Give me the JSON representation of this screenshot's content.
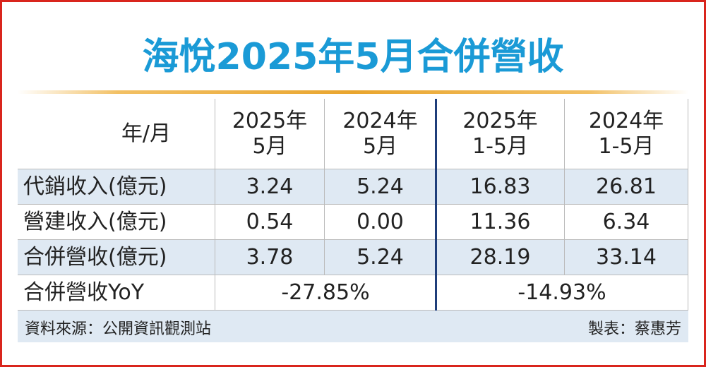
{
  "title": "海悅2025年5月合併營收",
  "table": {
    "corner": "年/月",
    "columns": [
      [
        "2025年",
        "5月"
      ],
      [
        "2024年",
        "5月"
      ],
      [
        "2025年",
        "1-5月"
      ],
      [
        "2024年",
        "1-5月"
      ]
    ],
    "rows": [
      [
        "代銷收入(億元)",
        "3.24",
        "5.24",
        "16.83",
        "26.81"
      ],
      [
        "營建收入(億元)",
        "0.54",
        "0.00",
        "11.36",
        "6.34"
      ],
      [
        "合併營收(億元)",
        "3.78",
        "5.24",
        "28.19",
        "33.14"
      ]
    ],
    "yoy": [
      "合併營收YoY",
      "-27.85%",
      "-14.93%"
    ]
  },
  "footer": {
    "source": "資料來源：公開資訊觀測站",
    "author": "製表：蔡惠芳"
  }
}
